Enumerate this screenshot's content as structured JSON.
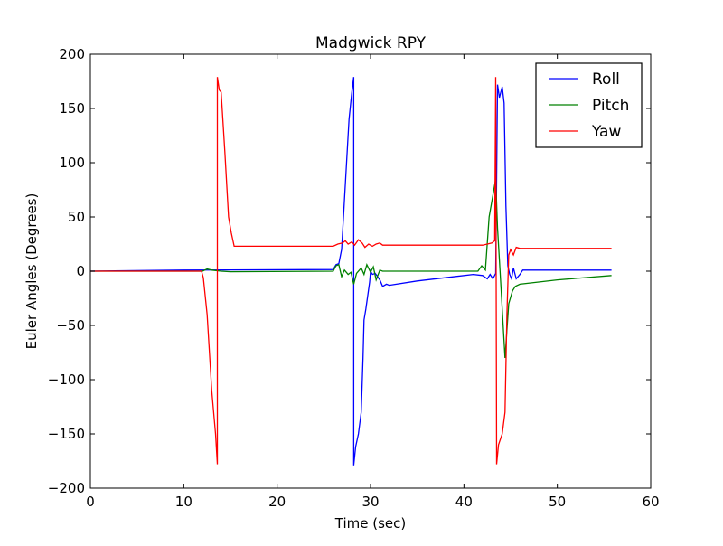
{
  "chart_data": {
    "type": "line",
    "title": "Madgwick RPY",
    "xlabel": "Time (sec)",
    "ylabel": "Euler Angles (Degrees)",
    "xlim": [
      0,
      60
    ],
    "ylim": [
      -200,
      200
    ],
    "xticks": [
      0,
      10,
      20,
      30,
      40,
      50,
      60
    ],
    "yticks": [
      -200,
      -150,
      -100,
      -50,
      0,
      50,
      100,
      150,
      200
    ],
    "grid": false,
    "legend": "top-right",
    "series": [
      {
        "name": "Roll",
        "color": "#0000ff",
        "points": [
          [
            0,
            0
          ],
          [
            10,
            1
          ],
          [
            26,
            1.5
          ],
          [
            26.3,
            6
          ],
          [
            26.6,
            7
          ],
          [
            26.9,
            20
          ],
          [
            27.3,
            80
          ],
          [
            27.7,
            140
          ],
          [
            28.0,
            165
          ],
          [
            28.2,
            179
          ],
          [
            28.2,
            -179
          ],
          [
            28.4,
            -162
          ],
          [
            28.7,
            -150
          ],
          [
            29.0,
            -130
          ],
          [
            29.2,
            -80
          ],
          [
            29.3,
            -45
          ],
          [
            29.5,
            -35
          ],
          [
            29.9,
            -10
          ],
          [
            30.0,
            0
          ],
          [
            30.2,
            -3
          ],
          [
            30.5,
            -2
          ],
          [
            31.0,
            -8
          ],
          [
            31.3,
            -14
          ],
          [
            31.7,
            -12
          ],
          [
            32,
            -13
          ],
          [
            35,
            -9
          ],
          [
            38,
            -6
          ],
          [
            41,
            -3
          ],
          [
            42,
            -4
          ],
          [
            42.5,
            -7
          ],
          [
            42.8,
            -3
          ],
          [
            43.1,
            -7
          ],
          [
            43.4,
            -2
          ],
          [
            43.6,
            172
          ],
          [
            43.8,
            160
          ],
          [
            44.1,
            170
          ],
          [
            44.3,
            155
          ],
          [
            44.5,
            60
          ],
          [
            44.7,
            5
          ],
          [
            44.9,
            -3
          ],
          [
            45.1,
            -7
          ],
          [
            45.3,
            3
          ],
          [
            45.6,
            -7
          ],
          [
            46,
            -3
          ],
          [
            46.3,
            1
          ],
          [
            55.8,
            1
          ]
        ]
      },
      {
        "name": "Pitch",
        "color": "#008000",
        "points": [
          [
            0,
            0
          ],
          [
            12,
            0
          ],
          [
            12.5,
            2
          ],
          [
            13,
            1
          ],
          [
            14,
            0
          ],
          [
            15,
            -0.5
          ],
          [
            26,
            0
          ],
          [
            26.3,
            5
          ],
          [
            26.6,
            6
          ],
          [
            26.9,
            -5
          ],
          [
            27.2,
            1
          ],
          [
            27.6,
            -3
          ],
          [
            27.9,
            -1
          ],
          [
            28.2,
            -12
          ],
          [
            28.5,
            -2
          ],
          [
            29.0,
            3
          ],
          [
            29.3,
            -3
          ],
          [
            29.6,
            6
          ],
          [
            30.0,
            -1
          ],
          [
            30.3,
            4
          ],
          [
            30.6,
            -8
          ],
          [
            31.0,
            1
          ],
          [
            31.3,
            0
          ],
          [
            41.5,
            0
          ],
          [
            41.9,
            5
          ],
          [
            42.3,
            1
          ],
          [
            42.7,
            50
          ],
          [
            43.1,
            70
          ],
          [
            43.4,
            85
          ],
          [
            43.6,
            40
          ],
          [
            44.0,
            -20
          ],
          [
            44.4,
            -80
          ],
          [
            44.8,
            -30
          ],
          [
            45.2,
            -18
          ],
          [
            45.5,
            -14
          ],
          [
            46,
            -12
          ],
          [
            50,
            -8
          ],
          [
            55.8,
            -4
          ]
        ]
      },
      {
        "name": "Yaw",
        "color": "#ff0000",
        "points": [
          [
            0,
            0
          ],
          [
            11.9,
            0
          ],
          [
            12.1,
            -6
          ],
          [
            12.5,
            -40
          ],
          [
            13.0,
            -110
          ],
          [
            13.4,
            -150
          ],
          [
            13.6,
            -178
          ],
          [
            13.6,
            179
          ],
          [
            13.8,
            167
          ],
          [
            14.0,
            165
          ],
          [
            14.4,
            110
          ],
          [
            14.8,
            50
          ],
          [
            15.1,
            35
          ],
          [
            15.4,
            23
          ],
          [
            26,
            23
          ],
          [
            26.5,
            25
          ],
          [
            27,
            26
          ],
          [
            27.3,
            28
          ],
          [
            27.6,
            25
          ],
          [
            28,
            27
          ],
          [
            28.3,
            24
          ],
          [
            28.7,
            29
          ],
          [
            29.1,
            26
          ],
          [
            29.4,
            22
          ],
          [
            29.8,
            25
          ],
          [
            30.2,
            23
          ],
          [
            30.6,
            25
          ],
          [
            31.0,
            26
          ],
          [
            31.3,
            24
          ],
          [
            42,
            24
          ],
          [
            42.5,
            25
          ],
          [
            43.0,
            26
          ],
          [
            43.3,
            28
          ],
          [
            43.4,
            179
          ],
          [
            43.5,
            -178
          ],
          [
            43.7,
            -160
          ],
          [
            44.1,
            -150
          ],
          [
            44.4,
            -130
          ],
          [
            44.6,
            -40
          ],
          [
            44.8,
            15
          ],
          [
            45.0,
            20
          ],
          [
            45.3,
            15
          ],
          [
            45.6,
            22
          ],
          [
            46,
            21
          ],
          [
            55.8,
            21
          ]
        ]
      }
    ]
  }
}
